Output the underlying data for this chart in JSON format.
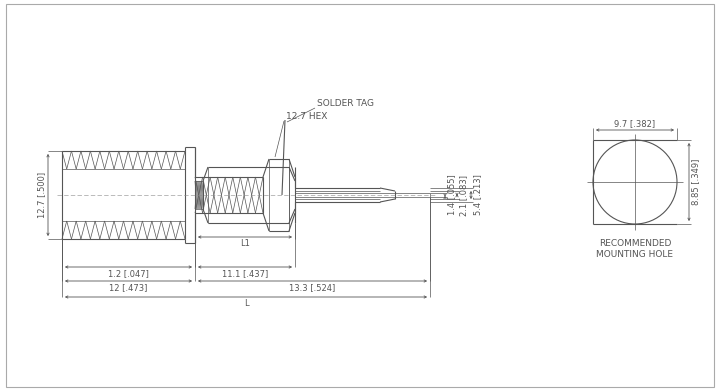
{
  "bg_color": "#ffffff",
  "line_color": "#555555",
  "lw_main": 0.8,
  "lw_thin": 0.5,
  "lw_dim": 0.6,
  "fs_small": 6.0,
  "fs_label": 6.5,
  "annotations": {
    "solder_tag": "SOLDER TAG",
    "hex_label": "12.7 HEX",
    "recommended_line1": "RECOMMENDED",
    "recommended_line2": "MOUNTING HOLE",
    "dim_12_7": "12.7 [.500]",
    "dim_1_2": "1.2 [.047]",
    "dim_12": "12 [.473]",
    "dim_11_1": "11.1 [.437]",
    "dim_13_3": "13.3 [.524]",
    "dim_L1": "L1",
    "dim_L": "L",
    "dim_5_4": "5.4 [.213]",
    "dim_2_1": "2.1 [.083]",
    "dim_1_4": "1.4 [.055]",
    "dim_9_7": "9.7 [.382]",
    "dim_8_85": "8.85 [.349]"
  }
}
